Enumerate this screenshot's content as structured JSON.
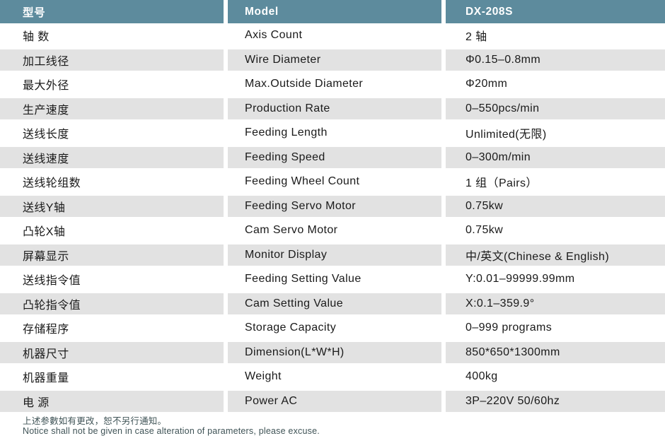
{
  "table": {
    "header": {
      "cn": "型号",
      "model": "Model",
      "value": "DX-208S"
    },
    "rows": [
      {
        "cn": "轴 数",
        "en": "Axis Count",
        "value": "2 轴"
      },
      {
        "cn": "加工线径",
        "en": "Wire Diameter",
        "value": "Φ0.15–0.8mm"
      },
      {
        "cn": "最大外径",
        "en": "Max.Outside Diameter",
        "value": "Φ20mm"
      },
      {
        "cn": "生产速度",
        "en": "Production Rate",
        "value": "0–550pcs/min"
      },
      {
        "cn": "送线长度",
        "en": "Feeding Length",
        "value": "Unlimited(无限)"
      },
      {
        "cn": "送线速度",
        "en": "Feeding Speed",
        "value": "0–300m/min"
      },
      {
        "cn": "送线轮组数",
        "en": "Feeding Wheel Count",
        "value": "1 组（Pairs）"
      },
      {
        "cn": "送线Y轴",
        "en": "Feeding Servo Motor",
        "value": "0.75kw"
      },
      {
        "cn": "凸轮X轴",
        "en": "Cam Servo Motor",
        "value": "0.75kw"
      },
      {
        "cn": "屏幕显示",
        "en": "Monitor Display",
        "value": "中/英文(Chinese & English)"
      },
      {
        "cn": "送线指令值",
        "en": "Feeding Setting Value",
        "value": "Y:0.01–99999.99mm"
      },
      {
        "cn": "凸轮指令值",
        "en": "Cam Setting Value",
        "value": "X:0.1–359.9°"
      },
      {
        "cn": "存储程序",
        "en": "Storage Capacity",
        "value": "0–999 programs"
      },
      {
        "cn": "机器尺寸",
        "en": "Dimension(L*W*H)",
        "value": "850*650*1300mm"
      },
      {
        "cn": "机器重量",
        "en": "Weight",
        "value": "400kg"
      },
      {
        "cn": "电 源",
        "en": "Power AC",
        "value": "3P–220V 50/60hz"
      }
    ]
  },
  "footer": {
    "cn": "上述参數如有更改，恕不另行通知。",
    "en": "Notice shall not be given in case alteration of parameters, please excuse."
  },
  "colors": {
    "header_bg": "#5d8b9d",
    "header_text": "#ffffff",
    "stripe_bg": "#e2e2e2",
    "row_bg": "#ffffff",
    "cell_text": "#1a1a1a",
    "footer_text": "#3f5356"
  }
}
